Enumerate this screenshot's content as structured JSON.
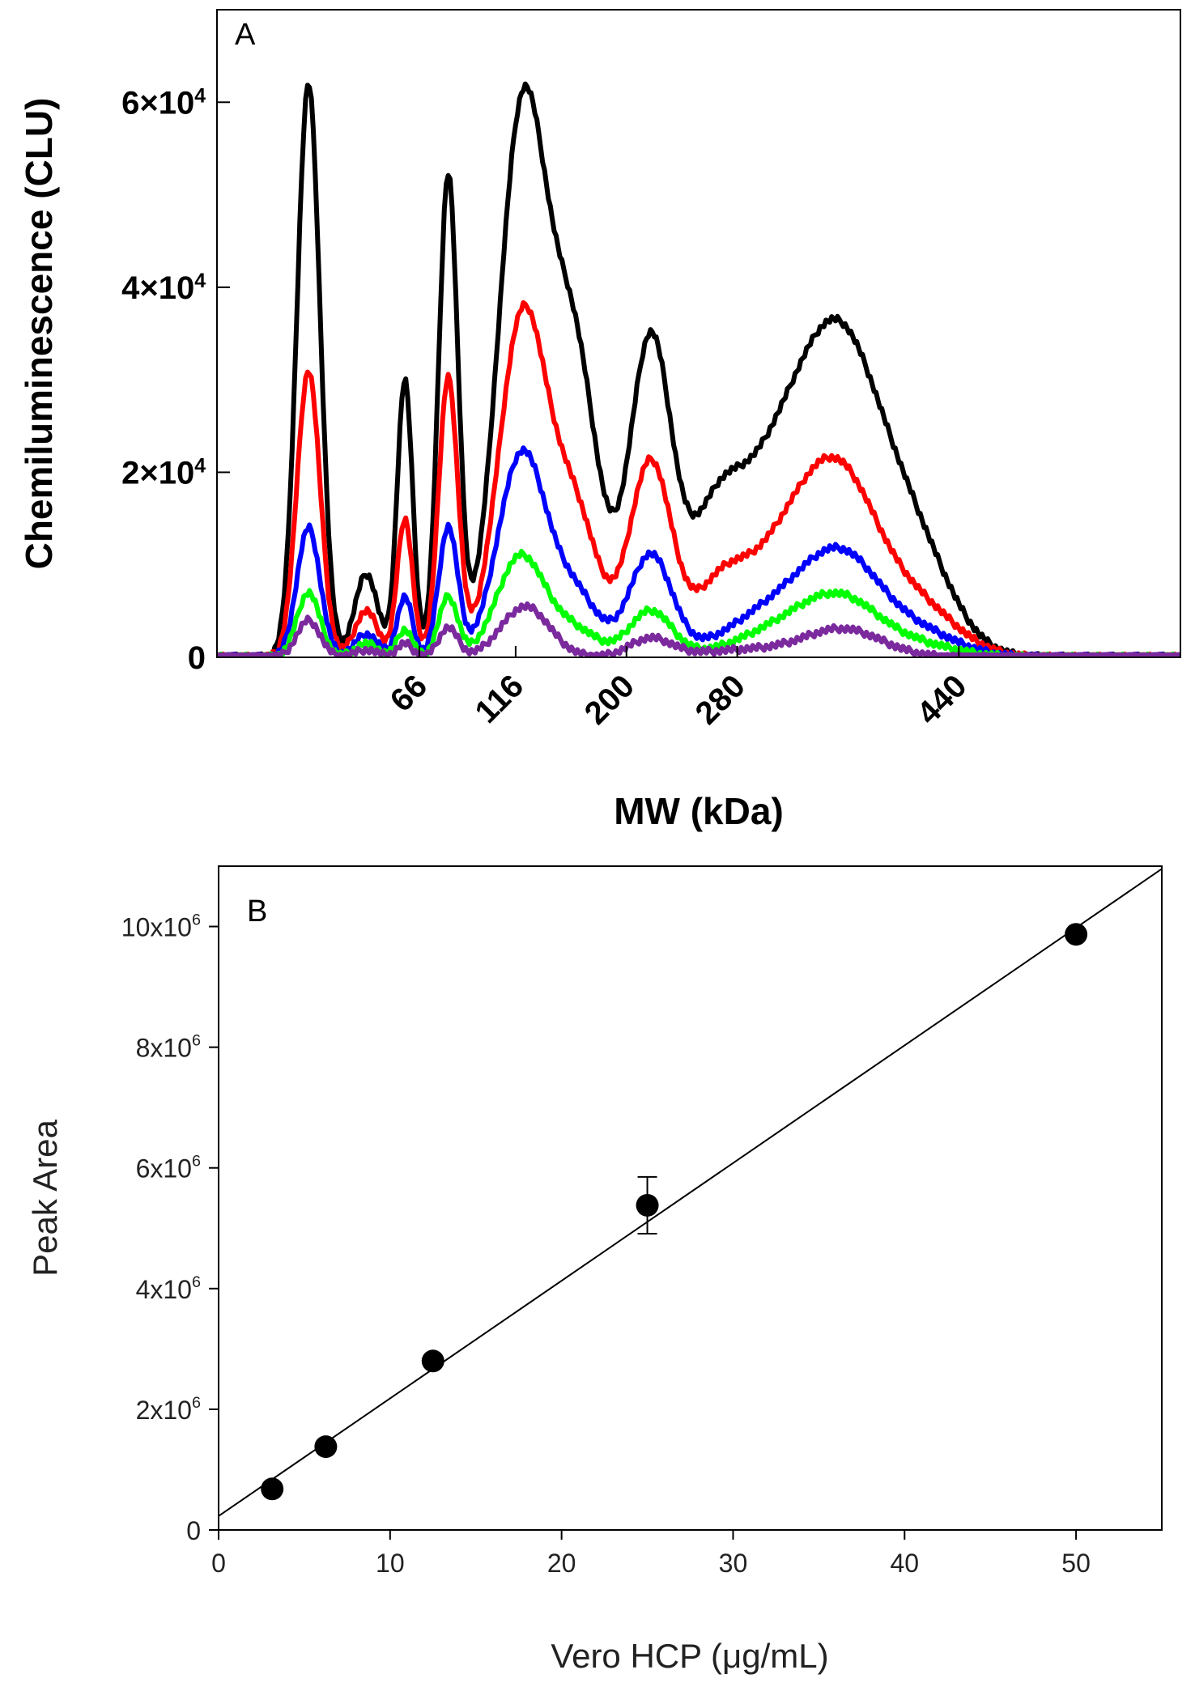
{
  "chart_data": [
    {
      "type": "line",
      "panel_label": "A",
      "xlabel": "MW (kDa)",
      "ylabel": "Chemiluminescence (CLU)",
      "xlim": [
        0,
        1000
      ],
      "ylim": [
        0,
        70000
      ],
      "y_ticks": [
        {
          "value": 0,
          "label": "0",
          "exp": ""
        },
        {
          "value": 20000,
          "label": "2×10",
          "exp": "4"
        },
        {
          "value": 40000,
          "label": "4×10",
          "exp": "4"
        },
        {
          "value": 60000,
          "label": "6×10",
          "exp": "4"
        }
      ],
      "x_ticks": [
        {
          "value": 210,
          "label": "66"
        },
        {
          "value": 310,
          "label": "116"
        },
        {
          "value": 425,
          "label": "200"
        },
        {
          "value": 540,
          "label": "280"
        },
        {
          "value": 770,
          "label": "440"
        }
      ],
      "series": [
        {
          "color": "#000000",
          "peaks": [
            [
              95,
              62000,
              12
            ],
            [
              155,
              9000,
              12
            ],
            [
              195,
              30000,
              8
            ],
            [
              240,
              52000,
              10
            ],
            [
              305,
              28000,
              22
            ],
            [
              325,
              36000,
              22
            ],
            [
              370,
              33000,
              25
            ],
            [
              450,
              34000,
              22
            ],
            [
              515,
              9000,
              25
            ],
            [
              580,
              20000,
              50
            ],
            [
              650,
              26000,
              40
            ],
            [
              720,
              12000,
              40
            ]
          ]
        },
        {
          "color": "#ff0000",
          "peaks": [
            [
              95,
              31000,
              12
            ],
            [
              155,
              5000,
              12
            ],
            [
              195,
              15000,
              8
            ],
            [
              240,
              30000,
              10
            ],
            [
              305,
              17000,
              22
            ],
            [
              325,
              23000,
              22
            ],
            [
              370,
              16000,
              25
            ],
            [
              450,
              21000,
              22
            ],
            [
              520,
              5000,
              25
            ],
            [
              590,
              11000,
              50
            ],
            [
              650,
              15000,
              40
            ],
            [
              730,
              5000,
              40
            ]
          ]
        },
        {
          "color": "#0000ff",
          "peaks": [
            [
              95,
              14000,
              12
            ],
            [
              155,
              2500,
              12
            ],
            [
              195,
              6500,
              8
            ],
            [
              240,
              14000,
              10
            ],
            [
              305,
              11000,
              22
            ],
            [
              325,
              13000,
              22
            ],
            [
              370,
              7000,
              25
            ],
            [
              450,
              11000,
              22
            ],
            [
              580,
              5000,
              50
            ],
            [
              650,
              9500,
              40
            ],
            [
              730,
              2500,
              40
            ]
          ]
        },
        {
          "color": "#00ff00",
          "peaks": [
            [
              95,
              7000,
              12
            ],
            [
              155,
              1500,
              12
            ],
            [
              195,
              3000,
              8
            ],
            [
              240,
              6500,
              10
            ],
            [
              305,
              6000,
              22
            ],
            [
              325,
              6000,
              22
            ],
            [
              370,
              3000,
              25
            ],
            [
              450,
              5000,
              22
            ],
            [
              590,
              3000,
              50
            ],
            [
              650,
              5200,
              40
            ],
            [
              730,
              1200,
              40
            ]
          ]
        },
        {
          "color": "#7b2a9e",
          "peaks": [
            [
              95,
              4000,
              12
            ],
            [
              155,
              800,
              12
            ],
            [
              195,
              1500,
              8
            ],
            [
              240,
              3200,
              10
            ],
            [
              320,
              5500,
              25
            ],
            [
              450,
              2000,
              22
            ],
            [
              550,
              800,
              50
            ],
            [
              650,
              3000,
              40
            ]
          ]
        }
      ]
    },
    {
      "type": "scatter",
      "panel_label": "B",
      "xlabel": "Vero HCP (μg/mL)",
      "ylabel": "Peak Area",
      "xlim": [
        0,
        55
      ],
      "ylim": [
        0,
        11000000
      ],
      "x_ticks": [
        0,
        10,
        20,
        30,
        40,
        50
      ],
      "y_ticks": [
        {
          "value": 0,
          "label": "0",
          "exp": ""
        },
        {
          "value": 2000000,
          "label": "2x10",
          "exp": "6"
        },
        {
          "value": 4000000,
          "label": "4x10",
          "exp": "6"
        },
        {
          "value": 6000000,
          "label": "6x10",
          "exp": "6"
        },
        {
          "value": 8000000,
          "label": "8x10",
          "exp": "6"
        },
        {
          "value": 10000000,
          "label": "10x10",
          "exp": "6"
        }
      ],
      "points": [
        {
          "x": 3.125,
          "y": 680000,
          "err": 0
        },
        {
          "x": 6.25,
          "y": 1380000,
          "err": 0
        },
        {
          "x": 12.5,
          "y": 2800000,
          "err": 0
        },
        {
          "x": 25,
          "y": 5380000,
          "err": 470000
        },
        {
          "x": 50,
          "y": 9870000,
          "err": 0
        }
      ],
      "fit_line": {
        "intercept": 230000,
        "slope": 195000
      }
    }
  ]
}
